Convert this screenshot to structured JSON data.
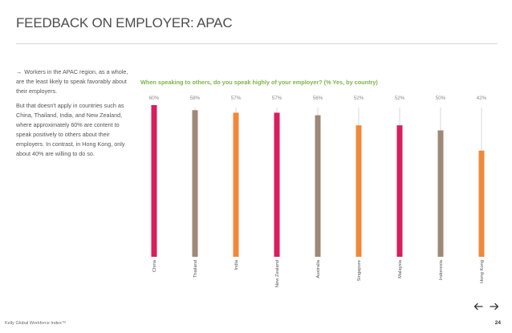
{
  "page": {
    "title": "FEEDBACK ON EMPLOYER: APAC",
    "side_text": {
      "bullet": "Workers in the APAC region, as a whole, are the least likely to speak favorably about their employers.",
      "body": "But that doesn't apply in countries such as China, Thailand, India, and New Zealand, where approximately 60% are content to speak positively to others about their employers. In contrast, in Hong Kong, only about 40% are willing to do so."
    },
    "chart_caption": "When speaking to others, do you speak highly of your employer? (% Yes, by country)",
    "footer": "Kelly Global Workforce Index™",
    "page_number": "24",
    "nav": {
      "prev_icon": "arrow-left-icon",
      "next_icon": "arrow-right-icon"
    }
  },
  "chart_data": {
    "type": "bar",
    "categories": [
      "China",
      "Thailand",
      "India",
      "New Zealand",
      "Australia",
      "Singapore",
      "Malaysia",
      "Indonesia",
      "Hong Kong"
    ],
    "values": [
      60,
      58,
      57,
      57,
      56,
      52,
      52,
      50,
      42
    ],
    "value_labels": [
      "60%",
      "58%",
      "57%",
      "57%",
      "56%",
      "52%",
      "52%",
      "50%",
      "42%"
    ],
    "colors": [
      "#d81e5b",
      "#9e8878",
      "#f0883a",
      "#d81e5b",
      "#9e8878",
      "#f0883a",
      "#d81e5b",
      "#9e8878",
      "#f0883a"
    ],
    "guide_color": "#d9d9d9",
    "ylim": [
      0,
      100
    ],
    "xlabel": "",
    "ylabel": "",
    "grid": false,
    "legend": "none"
  }
}
